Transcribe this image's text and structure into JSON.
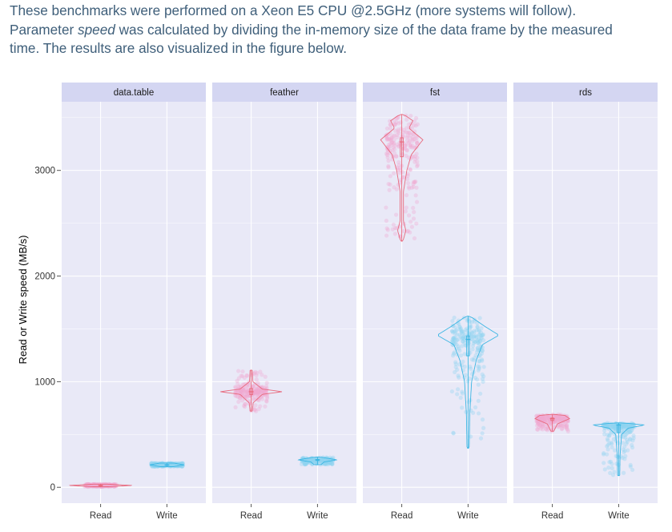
{
  "intro": {
    "line1": "These benchmarks were performed on a Xeon E5 CPU @2.5GHz (more systems will follow).",
    "line2_pre": "Parameter ",
    "line2_em": "speed",
    "line2_post": " was calculated by dividing the in-memory size of the data frame by the measured",
    "line3": "time. The results are also visualized in the figure below."
  },
  "colors": {
    "read": "#e8697d",
    "read_jitter": "#f2a8d0",
    "write": "#3cb6e3",
    "write_jitter": "#8fd3f2",
    "panel_bg": "#e9e9f7",
    "strip_bg": "#d4d6f2",
    "grid": "#ffffff"
  },
  "chart_data": {
    "type": "violin",
    "ylabel": "Read or Write speed (MB/s)",
    "ylim": [
      -150,
      3650
    ],
    "yticks": [
      0,
      1000,
      2000,
      3000
    ],
    "categories": [
      "Read",
      "Write"
    ],
    "facets": [
      {
        "name": "data.table",
        "groups": [
          {
            "name": "Read",
            "min": 5,
            "max": 30,
            "median": 18,
            "shape": [
              [
                5,
                0.2
              ],
              [
                18,
                1.0
              ],
              [
                30,
                0.2
              ]
            ]
          },
          {
            "name": "Write",
            "min": 195,
            "max": 230,
            "median": 212,
            "shape": [
              [
                195,
                0.2
              ],
              [
                212,
                0.55
              ],
              [
                230,
                0.2
              ]
            ]
          }
        ]
      },
      {
        "name": "feather",
        "groups": [
          {
            "name": "Read",
            "min": 720,
            "max": 1110,
            "median": 905,
            "shape": [
              [
                720,
                0.02
              ],
              [
                800,
                0.05
              ],
              [
                880,
                0.35
              ],
              [
                905,
                1.0
              ],
              [
                930,
                0.35
              ],
              [
                1000,
                0.04
              ],
              [
                1110,
                0.02
              ]
            ]
          },
          {
            "name": "Write",
            "min": 215,
            "max": 285,
            "median": 260,
            "shape": [
              [
                215,
                0.1
              ],
              [
                240,
                0.2
              ],
              [
                260,
                0.62
              ],
              [
                285,
                0.1
              ]
            ]
          }
        ]
      },
      {
        "name": "fst",
        "groups": [
          {
            "name": "Read",
            "min": 2330,
            "max": 3530,
            "median": 3270,
            "shape": [
              [
                2330,
                0.02
              ],
              [
                2430,
                0.12
              ],
              [
                2520,
                0.04
              ],
              [
                2800,
                0.04
              ],
              [
                3000,
                0.15
              ],
              [
                3150,
                0.3
              ],
              [
                3290,
                0.68
              ],
              [
                3400,
                0.22
              ],
              [
                3470,
                0.35
              ],
              [
                3530,
                0.05
              ]
            ]
          },
          {
            "name": "Write",
            "min": 370,
            "max": 1620,
            "median": 1400,
            "shape": [
              [
                370,
                0.02
              ],
              [
                700,
                0.04
              ],
              [
                1000,
                0.1
              ],
              [
                1200,
                0.25
              ],
              [
                1350,
                0.45
              ],
              [
                1440,
                1.0
              ],
              [
                1530,
                0.5
              ],
              [
                1620,
                0.05
              ]
            ]
          }
        ]
      },
      {
        "name": "rds",
        "groups": [
          {
            "name": "Read",
            "min": 530,
            "max": 690,
            "median": 650,
            "shape": [
              [
                530,
                0.03
              ],
              [
                600,
                0.15
              ],
              [
                650,
                0.55
              ],
              [
                680,
                0.4
              ],
              [
                690,
                0.05
              ]
            ]
          },
          {
            "name": "Write",
            "min": 110,
            "max": 610,
            "median": 590,
            "shape": [
              [
                110,
                0.02
              ],
              [
                300,
                0.03
              ],
              [
                500,
                0.08
              ],
              [
                560,
                0.3
              ],
              [
                590,
                0.85
              ],
              [
                610,
                0.1
              ]
            ]
          }
        ]
      }
    ]
  }
}
